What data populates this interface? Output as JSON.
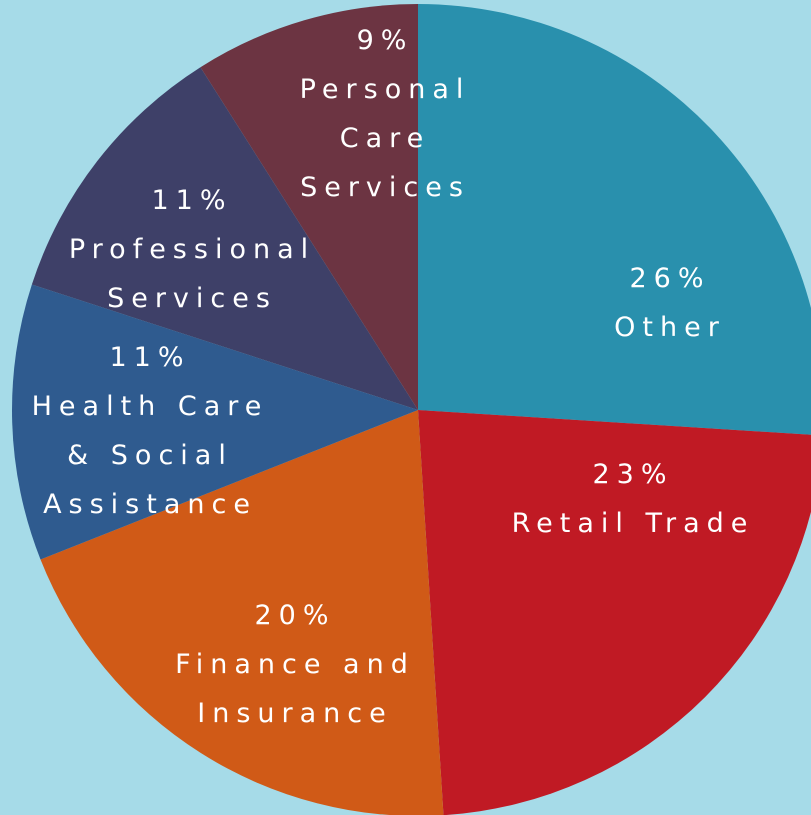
{
  "chart_data": {
    "type": "pie",
    "categories": [
      "Other",
      "Retail Trade",
      "Finance and Insurance",
      "Health Care & Social Assistance",
      "Professional Services",
      "Personal Care Services"
    ],
    "values": [
      26,
      23,
      20,
      11,
      11,
      9
    ],
    "value_labels": [
      "26%",
      "23%",
      "20%",
      "11%",
      "11%",
      "9%"
    ],
    "colors": [
      "#2990ad",
      "#c01a24",
      "#d05a17",
      "#2f5b8f",
      "#3e4068",
      "#6c3442"
    ]
  }
}
